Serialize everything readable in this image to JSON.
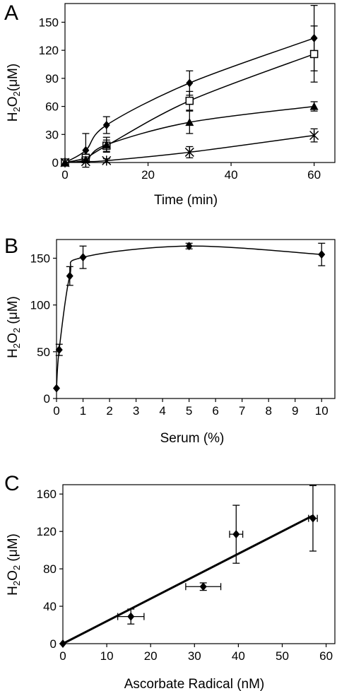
{
  "chart_data": [
    {
      "panel": "A",
      "type": "line",
      "xlabel": "Time (min)",
      "ylabel": "H2O2(μM)",
      "xlim": [
        0,
        65
      ],
      "ylim": [
        0,
        170
      ],
      "xticks": [
        0,
        20,
        40,
        60
      ],
      "yticks": [
        0,
        30,
        60,
        90,
        120,
        150
      ],
      "grid": false,
      "series": [
        {
          "marker": "diamond",
          "x": [
            0,
            5,
            10,
            30,
            60
          ],
          "y": [
            0,
            13,
            40,
            85,
            133
          ],
          "err": [
            0,
            18,
            9,
            13,
            35
          ]
        },
        {
          "marker": "square-open",
          "x": [
            0,
            5,
            10,
            30,
            60
          ],
          "y": [
            0,
            5,
            18,
            66,
            116
          ],
          "err": [
            0,
            4,
            6,
            10,
            30
          ]
        },
        {
          "marker": "triangle",
          "x": [
            0,
            5,
            10,
            30,
            60
          ],
          "y": [
            0,
            3,
            19,
            43,
            60
          ],
          "err": [
            0,
            3,
            8,
            12,
            5
          ]
        },
        {
          "marker": "asterisk",
          "x": [
            0,
            5,
            10,
            30,
            60
          ],
          "y": [
            0,
            1,
            2,
            11,
            29
          ],
          "err": [
            0,
            1,
            2,
            6,
            7
          ]
        }
      ]
    },
    {
      "panel": "B",
      "type": "line",
      "xlabel": "Serum (%)",
      "ylabel": "H2O2 (μM)",
      "xlim": [
        0,
        10.5
      ],
      "ylim": [
        0,
        170
      ],
      "xticks": [
        0,
        1,
        2,
        3,
        4,
        5,
        6,
        7,
        8,
        9,
        10
      ],
      "yticks": [
        0,
        50,
        100,
        150
      ],
      "grid": false,
      "series": [
        {
          "marker": "diamond",
          "x": [
            0,
            0.1,
            0.5,
            1,
            5,
            10
          ],
          "y": [
            11,
            52,
            131,
            151,
            163,
            154
          ],
          "err": [
            0,
            6,
            10,
            12,
            3,
            12
          ]
        }
      ]
    },
    {
      "panel": "C",
      "type": "scatter",
      "xlabel": "Ascorbate Radical (nM)",
      "ylabel": "H2O2 (μM)",
      "xlim": [
        0,
        62
      ],
      "ylim": [
        0,
        170
      ],
      "xticks": [
        0,
        10,
        20,
        30,
        40,
        50,
        60
      ],
      "yticks": [
        0,
        40,
        80,
        120,
        160
      ],
      "grid": false,
      "series": [
        {
          "marker": "diamond",
          "x": [
            0,
            15.5,
            32,
            39.5,
            57
          ],
          "y": [
            0,
            29,
            61,
            117,
            134
          ],
          "yerr": [
            0,
            8,
            4,
            31,
            35
          ],
          "xerr": [
            0,
            3,
            4,
            1.5,
            1
          ]
        }
      ],
      "fit_line": {
        "x": [
          0,
          57
        ],
        "y": [
          0,
          137
        ]
      }
    }
  ],
  "panels": {
    "a": {
      "label": "A",
      "xlabel": "Time (min)",
      "ylabel_main": "H",
      "ylabel_sub1": "2",
      "ylabel_mid": "O",
      "ylabel_sub2": "2",
      "ylabel_unit": "(μM)"
    },
    "b": {
      "label": "B",
      "xlabel": "Serum (%)",
      "ylabel_main": "H",
      "ylabel_sub1": "2",
      "ylabel_mid": "O",
      "ylabel_sub2": "2",
      "ylabel_unit": " (μM)"
    },
    "c": {
      "label": "C",
      "xlabel": "Ascorbate Radical (nM)",
      "ylabel_main": "H",
      "ylabel_sub1": "2",
      "ylabel_mid": "O",
      "ylabel_sub2": "2",
      "ylabel_unit": " (μM)"
    }
  }
}
